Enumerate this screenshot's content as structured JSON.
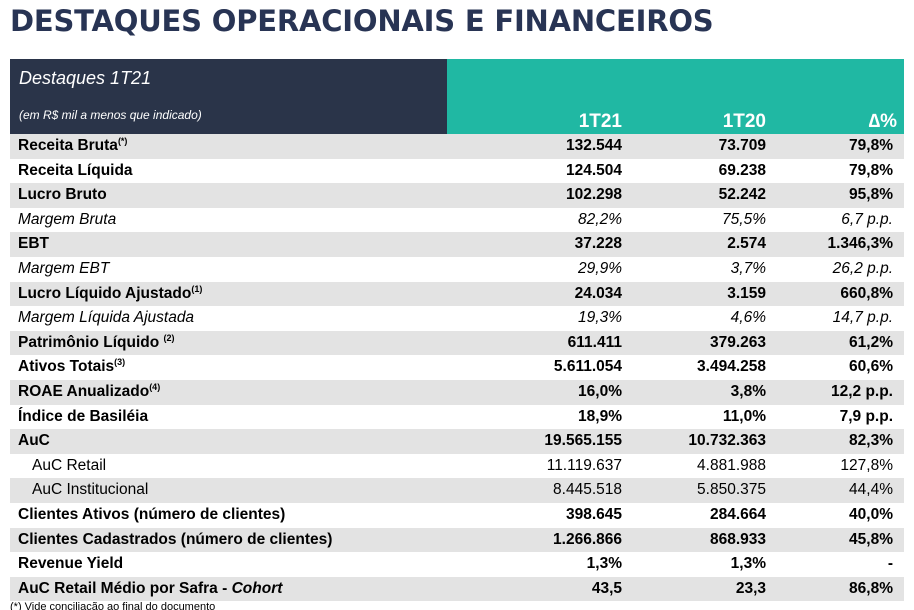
{
  "page_title": "DESTAQUES OPERACIONAIS E FINANCEIROS",
  "table": {
    "title": "Destaques 1T21",
    "subtitle": "(em R$ mil a menos que indicado)",
    "columns": [
      "1T21",
      "1T20",
      "∆%"
    ],
    "rows": [
      {
        "label": "Receita Bruta",
        "sup": "(*)",
        "values": [
          "132.544",
          "73.709",
          "79,8%"
        ],
        "style": "bold",
        "shade": true
      },
      {
        "label": "Receita Líquida",
        "sup": "",
        "values": [
          "124.504",
          "69.238",
          "79,8%"
        ],
        "style": "bold",
        "shade": false
      },
      {
        "label": "Lucro Bruto",
        "sup": "",
        "values": [
          "102.298",
          "52.242",
          "95,8%"
        ],
        "style": "bold",
        "shade": true
      },
      {
        "label": "Margem Bruta",
        "sup": "",
        "values": [
          "82,2%",
          "75,5%",
          "6,7 p.p."
        ],
        "style": "italic",
        "shade": false
      },
      {
        "label": "EBT",
        "sup": "",
        "values": [
          "37.228",
          "2.574",
          "1.346,3%"
        ],
        "style": "bold",
        "shade": true
      },
      {
        "label": "Margem EBT",
        "sup": "",
        "values": [
          "29,9%",
          "3,7%",
          "26,2 p.p."
        ],
        "style": "italic",
        "shade": false
      },
      {
        "label": "Lucro Líquido Ajustado",
        "sup": "(1)",
        "values": [
          "24.034",
          "3.159",
          "660,8%"
        ],
        "style": "bold",
        "shade": true
      },
      {
        "label": "Margem Líquida Ajustada",
        "sup": "",
        "values": [
          "19,3%",
          "4,6%",
          "14,7 p.p."
        ],
        "style": "italic",
        "shade": false
      },
      {
        "label": "Patrimônio Líquido ",
        "sup": "(2)",
        "values": [
          "611.411",
          "379.263",
          "61,2%"
        ],
        "style": "bold",
        "shade": true
      },
      {
        "label": "Ativos Totais",
        "sup": "(3)",
        "values": [
          "5.611.054",
          "3.494.258",
          "60,6%"
        ],
        "style": "bold",
        "shade": false
      },
      {
        "label": "ROAE Anualizado",
        "sup": "(4)",
        "values": [
          "16,0%",
          "3,8%",
          "12,2 p.p."
        ],
        "style": "bold",
        "shade": true
      },
      {
        "label": "Índice de Basiléia",
        "sup": "",
        "values": [
          "18,9%",
          "11,0%",
          "7,9 p.p."
        ],
        "style": "bold",
        "shade": false
      },
      {
        "label": "AuC",
        "sup": "",
        "values": [
          "19.565.155",
          "10.732.363",
          "82,3%"
        ],
        "style": "bold",
        "shade": true
      },
      {
        "label": "AuC Retail",
        "sup": "",
        "values": [
          "11.119.637",
          "4.881.988",
          "127,8%"
        ],
        "style": "indent",
        "shade": false
      },
      {
        "label": "AuC Institucional",
        "sup": "",
        "values": [
          "8.445.518",
          "5.850.375",
          "44,4%"
        ],
        "style": "indent",
        "shade": true
      },
      {
        "label": "Clientes Ativos (número de clientes)",
        "sup": "",
        "values": [
          "398.645",
          "284.664",
          "40,0%"
        ],
        "style": "bold",
        "shade": false
      },
      {
        "label": "Clientes Cadastrados (número de clientes)",
        "sup": "",
        "values": [
          "1.266.866",
          "868.933",
          "45,8%"
        ],
        "style": "bold",
        "shade": true
      },
      {
        "label": "Revenue Yield",
        "sup": "",
        "values": [
          "1,3%",
          "1,3%",
          "-"
        ],
        "style": "bold",
        "shade": false
      },
      {
        "label": "AuC Retail Médio por Safra - ",
        "label_italic": "Cohort",
        "sup": "",
        "values": [
          "43,5",
          "23,3",
          "86,8%"
        ],
        "style": "bold",
        "shade": true
      }
    ]
  },
  "footnote": "(*) Vide conciliação ao final do documento",
  "colors": {
    "title": "#283454",
    "header_dark": "#2a3449",
    "header_teal": "#20b8a3",
    "row_shade": "#e3e3e3"
  }
}
